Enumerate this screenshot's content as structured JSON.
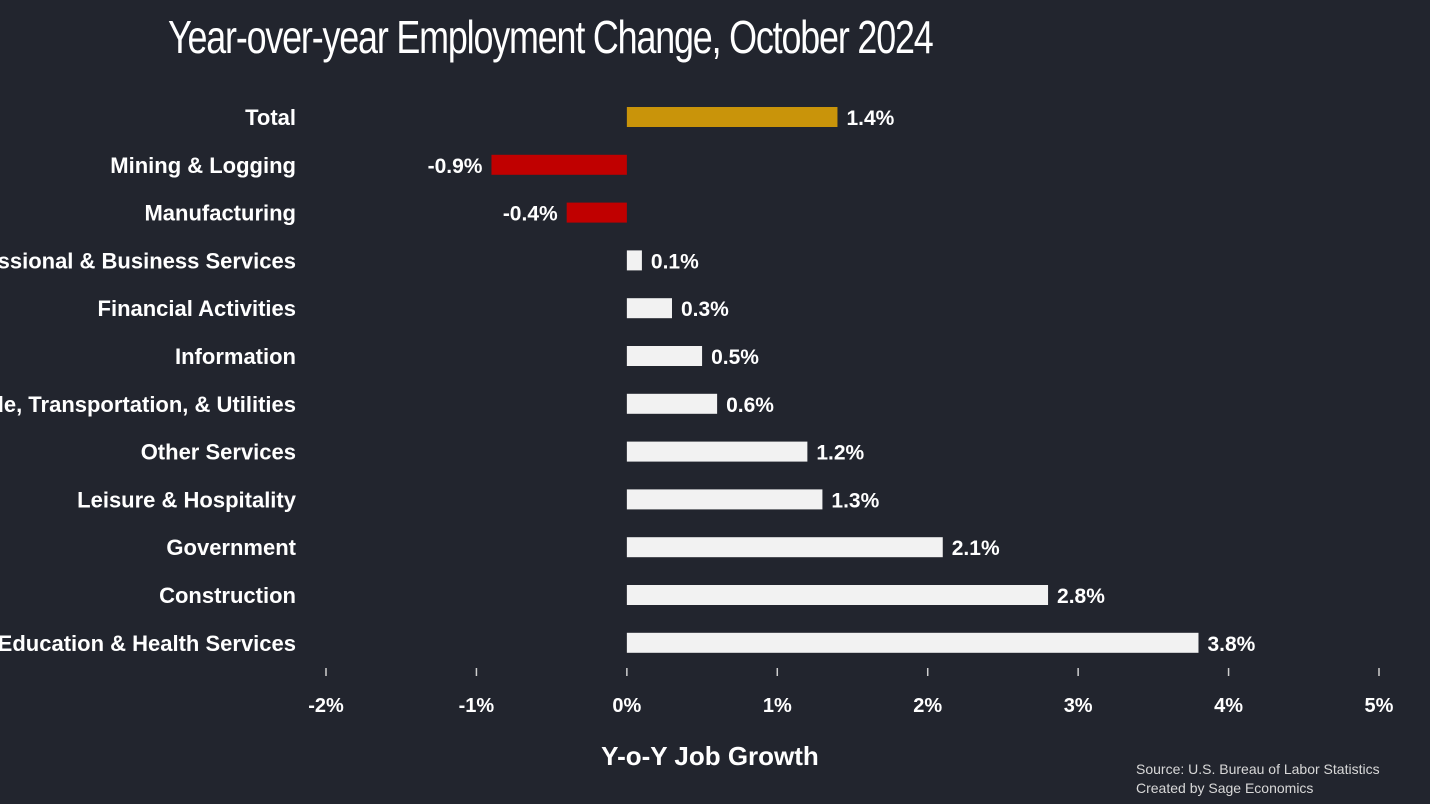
{
  "chart_data": {
    "type": "bar",
    "orientation": "horizontal",
    "title": "Year-over-year Employment Change, October 2024",
    "xlabel": "Y-o-Y Job Growth",
    "ylabel": "",
    "xlim": [
      -2,
      5
    ],
    "x_ticks": [
      "-2%",
      "-1%",
      "0%",
      "1%",
      "2%",
      "3%",
      "4%",
      "5%"
    ],
    "grid": false,
    "categories": [
      "Total",
      "Mining & Logging",
      "Manufacturing",
      "Professional & Business Services",
      "Financial Activities",
      "Information",
      "Trade, Transportation, & Utilities",
      "Other Services",
      "Leisure & Hospitality",
      "Government",
      "Construction",
      "Education & Health Services"
    ],
    "values": [
      1.4,
      -0.9,
      -0.4,
      0.1,
      0.3,
      0.5,
      0.6,
      1.2,
      1.3,
      2.1,
      2.8,
      3.8
    ],
    "value_labels": [
      "1.4%",
      "-0.9%",
      "-0.4%",
      "0.1%",
      "0.3%",
      "0.5%",
      "0.6%",
      "1.2%",
      "1.3%",
      "2.1%",
      "2.8%",
      "3.8%"
    ],
    "colors": {
      "total": "#c9940a",
      "negative": "#c00000",
      "positive": "#f2f2f2",
      "background": "#22252e"
    }
  },
  "source": {
    "line1": "Source: U.S. Bureau of Labor Statistics",
    "line2": "Created by Sage Economics"
  }
}
